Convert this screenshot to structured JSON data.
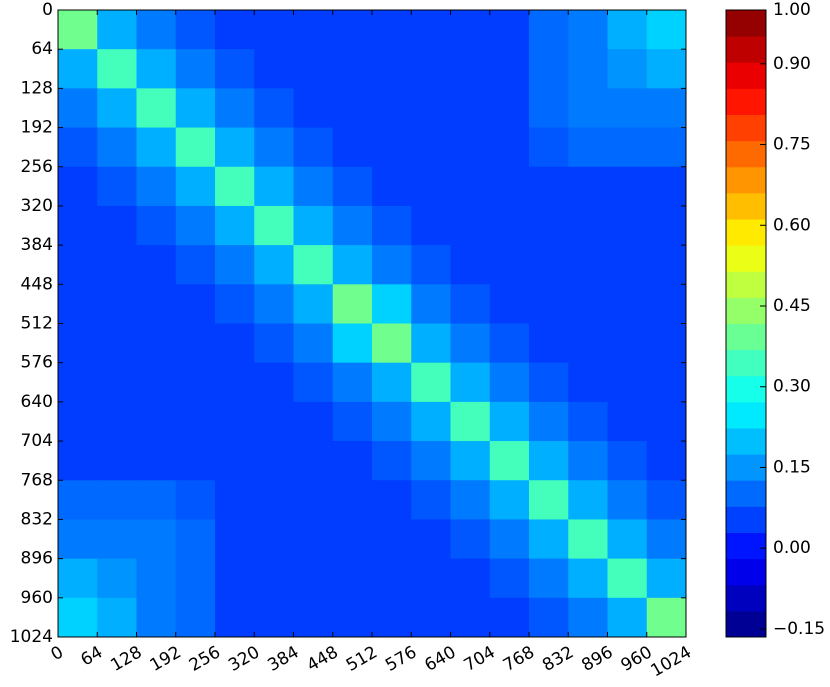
{
  "chart_data": {
    "type": "heatmap",
    "cmap": "jet",
    "xlim": [
      0,
      1024
    ],
    "ylim": [
      0,
      1024
    ],
    "y_inverted": true,
    "xticks": [
      0,
      64,
      128,
      192,
      256,
      320,
      384,
      448,
      512,
      576,
      640,
      704,
      768,
      832,
      896,
      960,
      1024
    ],
    "yticks": [
      0,
      64,
      128,
      192,
      256,
      320,
      384,
      448,
      512,
      576,
      640,
      704,
      768,
      832,
      896,
      960,
      1024
    ],
    "clim": [
      -0.165,
      1.0
    ],
    "cticks": [
      {
        "value": 1,
        "label": "1.00"
      },
      {
        "value": 0.9,
        "label": "0.90"
      },
      0.75,
      {
        "value": 0.6,
        "label": "0.60"
      },
      0.45,
      {
        "value": 0.3,
        "label": "0.30"
      },
      0.15,
      {
        "value": 0,
        "label": "0.00"
      },
      {
        "value": -0.15,
        "label": "−0.15"
      }
    ],
    "values": [
      [
        0.4,
        0.18,
        0.12,
        0.08,
        0.05,
        0.05,
        0.05,
        0.05,
        0.05,
        0.05,
        0.05,
        0.05,
        0.1,
        0.12,
        0.18,
        0.22
      ],
      [
        0.18,
        0.35,
        0.18,
        0.12,
        0.08,
        0.05,
        0.05,
        0.05,
        0.05,
        0.05,
        0.05,
        0.05,
        0.1,
        0.12,
        0.15,
        0.18
      ],
      [
        0.12,
        0.18,
        0.35,
        0.18,
        0.12,
        0.08,
        0.05,
        0.05,
        0.05,
        0.05,
        0.05,
        0.05,
        0.1,
        0.12,
        0.12,
        0.12
      ],
      [
        0.08,
        0.12,
        0.18,
        0.35,
        0.18,
        0.12,
        0.08,
        0.05,
        0.05,
        0.05,
        0.05,
        0.05,
        0.08,
        0.1,
        0.1,
        0.1
      ],
      [
        0.05,
        0.08,
        0.12,
        0.18,
        0.35,
        0.18,
        0.12,
        0.08,
        0.05,
        0.05,
        0.05,
        0.05,
        0.05,
        0.05,
        0.05,
        0.05
      ],
      [
        0.05,
        0.05,
        0.08,
        0.12,
        0.18,
        0.35,
        0.18,
        0.12,
        0.08,
        0.05,
        0.05,
        0.05,
        0.05,
        0.05,
        0.05,
        0.05
      ],
      [
        0.05,
        0.05,
        0.05,
        0.08,
        0.12,
        0.18,
        0.35,
        0.18,
        0.12,
        0.08,
        0.05,
        0.05,
        0.05,
        0.05,
        0.05,
        0.05
      ],
      [
        0.05,
        0.05,
        0.05,
        0.05,
        0.08,
        0.12,
        0.18,
        0.4,
        0.22,
        0.12,
        0.08,
        0.05,
        0.05,
        0.05,
        0.05,
        0.05
      ],
      [
        0.05,
        0.05,
        0.05,
        0.05,
        0.05,
        0.08,
        0.12,
        0.22,
        0.4,
        0.18,
        0.12,
        0.08,
        0.05,
        0.05,
        0.05,
        0.05
      ],
      [
        0.05,
        0.05,
        0.05,
        0.05,
        0.05,
        0.05,
        0.08,
        0.12,
        0.18,
        0.35,
        0.18,
        0.12,
        0.08,
        0.05,
        0.05,
        0.05
      ],
      [
        0.05,
        0.05,
        0.05,
        0.05,
        0.05,
        0.05,
        0.05,
        0.08,
        0.12,
        0.18,
        0.35,
        0.18,
        0.12,
        0.08,
        0.05,
        0.05
      ],
      [
        0.05,
        0.05,
        0.05,
        0.05,
        0.05,
        0.05,
        0.05,
        0.05,
        0.08,
        0.12,
        0.18,
        0.35,
        0.18,
        0.12,
        0.08,
        0.05
      ],
      [
        0.1,
        0.1,
        0.1,
        0.08,
        0.05,
        0.05,
        0.05,
        0.05,
        0.05,
        0.08,
        0.12,
        0.18,
        0.35,
        0.18,
        0.12,
        0.08
      ],
      [
        0.12,
        0.12,
        0.12,
        0.1,
        0.05,
        0.05,
        0.05,
        0.05,
        0.05,
        0.05,
        0.08,
        0.12,
        0.18,
        0.35,
        0.18,
        0.12
      ],
      [
        0.18,
        0.15,
        0.12,
        0.1,
        0.05,
        0.05,
        0.05,
        0.05,
        0.05,
        0.05,
        0.05,
        0.08,
        0.12,
        0.18,
        0.35,
        0.18
      ],
      [
        0.22,
        0.18,
        0.12,
        0.1,
        0.05,
        0.05,
        0.05,
        0.05,
        0.05,
        0.05,
        0.05,
        0.05,
        0.08,
        0.12,
        0.18,
        0.4
      ]
    ]
  }
}
